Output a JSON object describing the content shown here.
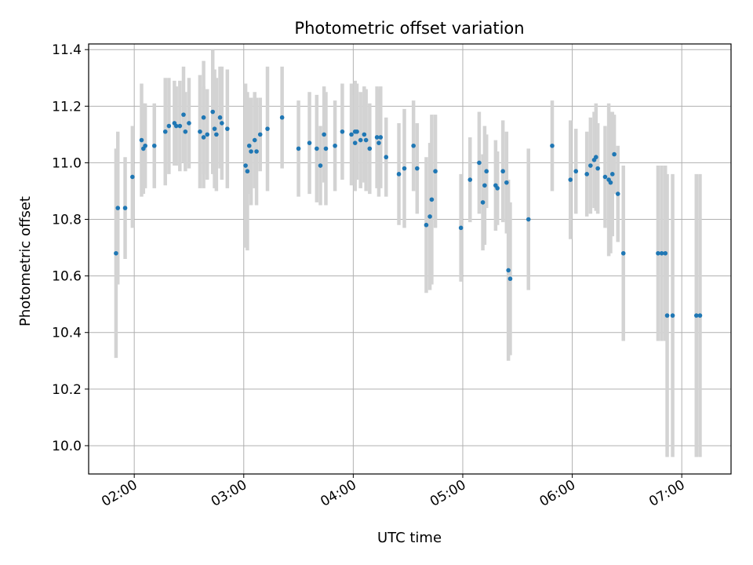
{
  "chart_data": {
    "type": "scatter",
    "title": "Photometric offset variation",
    "xlabel": "UTC time",
    "ylabel": "Photometric offset",
    "xlim": [
      "01:35",
      "07:27"
    ],
    "ylim": [
      9.9,
      11.42
    ],
    "x_ticks": [
      "02:00",
      "03:00",
      "04:00",
      "05:00",
      "06:00",
      "07:00"
    ],
    "y_ticks": [
      10.0,
      10.2,
      10.4,
      10.6,
      10.8,
      11.0,
      11.2,
      11.4
    ],
    "y_tick_labels": [
      "10.0",
      "10.2",
      "10.4",
      "10.6",
      "10.8",
      "11.0",
      "11.2",
      "11.4"
    ],
    "grid": true,
    "marker_color": "#1f77b4",
    "errorbar_color": "#d3d3d3",
    "series": [
      {
        "x": [
          "01:50",
          "01:51",
          "01:55",
          "01:59",
          "02:04",
          "02:05",
          "02:06",
          "02:11",
          "02:17",
          "02:19",
          "02:22",
          "02:23",
          "02:25",
          "02:27",
          "02:28",
          "02:30",
          "02:36",
          "02:38",
          "02:38",
          "02:40",
          "02:43",
          "02:44",
          "02:45",
          "02:47",
          "02:48",
          "02:51",
          "03:01",
          "03:02",
          "03:03",
          "03:04",
          "03:06",
          "03:07",
          "03:09",
          "03:13",
          "03:21",
          "03:30",
          "03:36",
          "03:40",
          "03:42",
          "03:44",
          "03:45",
          "03:50",
          "03:54",
          "03:59",
          "04:01",
          "04:01",
          "04:02",
          "04:04",
          "04:06",
          "04:07",
          "04:09",
          "04:13",
          "04:14",
          "04:15",
          "04:18",
          "04:25",
          "04:28",
          "04:33",
          "04:35",
          "04:40",
          "04:42",
          "04:43",
          "04:45",
          "04:59",
          "05:04",
          "05:09",
          "05:11",
          "05:12",
          "05:13",
          "05:18",
          "05:19",
          "05:22",
          "05:24",
          "05:25",
          "05:26",
          "05:36",
          "05:49",
          "05:59",
          "06:02",
          "06:08",
          "06:10",
          "06:12",
          "06:13",
          "06:14",
          "06:18",
          "06:20",
          "06:21",
          "06:22",
          "06:23",
          "06:25",
          "06:28",
          "06:47",
          "06:49",
          "06:51",
          "06:52",
          "06:55",
          "07:08",
          "07:10"
        ],
        "y": [
          10.68,
          10.84,
          10.84,
          10.95,
          11.08,
          11.05,
          11.06,
          11.06,
          11.11,
          11.13,
          11.14,
          11.13,
          11.13,
          11.17,
          11.11,
          11.14,
          11.11,
          11.09,
          11.16,
          11.1,
          11.18,
          11.12,
          11.1,
          11.16,
          11.14,
          11.12,
          10.99,
          10.97,
          11.06,
          11.04,
          11.08,
          11.04,
          11.1,
          11.12,
          11.16,
          11.05,
          11.07,
          11.05,
          10.99,
          11.1,
          11.05,
          11.06,
          11.11,
          11.1,
          11.11,
          11.07,
          11.11,
          11.08,
          11.1,
          11.08,
          11.05,
          11.09,
          11.07,
          11.09,
          11.02,
          10.96,
          10.98,
          11.06,
          10.98,
          10.78,
          10.81,
          10.87,
          10.97,
          10.77,
          10.94,
          11.0,
          10.86,
          10.92,
          10.97,
          10.92,
          10.91,
          10.97,
          10.93,
          10.62,
          10.59,
          10.8,
          11.06,
          10.94,
          10.97,
          10.96,
          10.99,
          11.01,
          11.02,
          10.98,
          10.95,
          10.94,
          10.93,
          10.96,
          11.03,
          10.89,
          10.68,
          10.68,
          10.68,
          10.68,
          10.46,
          10.46,
          10.46,
          10.46
        ],
        "yerr": [
          0.37,
          0.27,
          0.18,
          0.18,
          0.2,
          0.16,
          0.15,
          0.15,
          0.19,
          0.17,
          0.15,
          0.14,
          0.16,
          0.17,
          0.14,
          0.16,
          0.2,
          0.18,
          0.2,
          0.16,
          0.22,
          0.21,
          0.2,
          0.18,
          0.2,
          0.21,
          0.29,
          0.28,
          0.17,
          0.19,
          0.17,
          0.19,
          0.13,
          0.22,
          0.18,
          0.17,
          0.18,
          0.19,
          0.14,
          0.17,
          0.2,
          0.16,
          0.17,
          0.18,
          0.18,
          0.17,
          0.17,
          0.17,
          0.17,
          0.18,
          0.16,
          0.18,
          0.19,
          0.18,
          0.14,
          0.18,
          0.21,
          0.16,
          0.16,
          0.24,
          0.26,
          0.3,
          0.2,
          0.19,
          0.15,
          0.18,
          0.17,
          0.21,
          0.13,
          0.16,
          0.13,
          0.18,
          0.18,
          0.32,
          0.27,
          0.25,
          0.16,
          0.21,
          0.15,
          0.15,
          0.17,
          0.17,
          0.19,
          0.16,
          0.18,
          0.27,
          0.25,
          0.22,
          0.14,
          0.17,
          0.31,
          0.31,
          0.31,
          0.31,
          0.5,
          0.5,
          0.5,
          0.5
        ]
      }
    ]
  }
}
